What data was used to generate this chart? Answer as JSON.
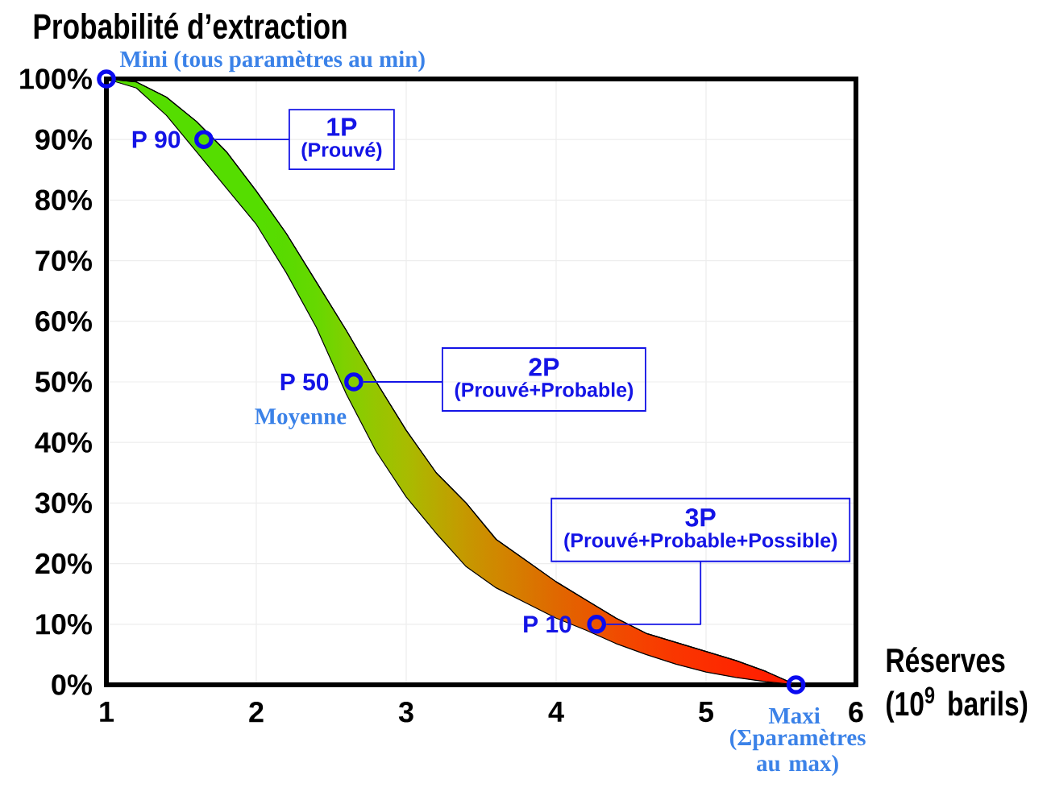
{
  "chart_data": {
    "type": "line",
    "ylabel": "Probabilité d’extraction",
    "xlabel": "Réserves (10$^{9}$ barils)",
    "xlim": [
      1,
      6
    ],
    "xticks": [
      1,
      2,
      3,
      4,
      5,
      6
    ],
    "ylim": [
      0,
      100
    ],
    "yticks": [
      {
        "value": 0,
        "label": "0%"
      },
      {
        "value": 10,
        "label": "10%"
      },
      {
        "value": 20,
        "label": "20%"
      },
      {
        "value": 30,
        "label": "30%"
      },
      {
        "value": 40,
        "label": "40%"
      },
      {
        "value": 50,
        "label": "50%"
      },
      {
        "value": 60,
        "label": "60%"
      },
      {
        "value": 70,
        "label": "70%"
      },
      {
        "value": 80,
        "label": "80%"
      },
      {
        "value": 90,
        "label": "90%"
      },
      {
        "value": 100,
        "label": "100%"
      }
    ],
    "grid": true,
    "series": [
      {
        "color": "#000000",
        "x": [
          1,
          1.2,
          1.4,
          1.6,
          1.8,
          2,
          2.2,
          2.4,
          2.6,
          2.8,
          3,
          3.2,
          3.4,
          3.6,
          3.8,
          4,
          4.2,
          4.4,
          4.6,
          4.8,
          5,
          5.2,
          5.4,
          5.6
        ],
        "values": [
          100,
          99.5,
          97,
          93,
          88,
          81.5,
          74.5,
          66.5,
          58.5,
          50,
          42,
          35,
          30,
          24,
          20.5,
          17,
          14,
          11,
          8.5,
          7,
          5.5,
          4,
          2.2,
          0
        ],
        "lower": [
          100,
          98.5,
          94,
          88,
          82,
          76,
          68,
          59,
          48,
          38.5,
          31,
          25,
          19.5,
          16,
          13.5,
          11,
          9,
          6.8,
          5,
          3.4,
          2.1,
          1.2,
          0.5,
          0
        ],
        "upper": [
          100,
          99.5,
          97,
          93,
          88,
          81.5,
          74.5,
          66.5,
          58.5,
          50,
          42,
          35,
          30,
          24,
          20.5,
          17,
          14,
          11,
          8.5,
          7,
          5.5,
          4,
          2.2,
          0
        ],
        "colors": [
          "#55dd00",
          "#55dd00",
          "#55dd00",
          "#55dd00",
          "#55dd00",
          "#55dd00",
          "#5ada00",
          "#66d800",
          "#80d000",
          "#96c600",
          "#a8bc00",
          "#b8aa00",
          "#c69800",
          "#d08800",
          "#d87800",
          "#e06800",
          "#e85a00",
          "#f04c00",
          "#f64000",
          "#fa3600",
          "#fc2e00",
          "#fe2600",
          "#ff2000",
          "#ff1a00"
        ]
      },
      {
        "type": "scatter",
        "x": [
          1,
          1.65,
          2.65,
          4.27,
          5.6
        ],
        "values": [
          100,
          90,
          50,
          10,
          0
        ],
        "color": "#0a0af0",
        "marker": "circle"
      }
    ],
    "annotations": [
      {
        "text": "Mini (tous paramètres au min)",
        "x": 1,
        "y": 100
      },
      {
        "text": "P 90",
        "x": 1.65,
        "y": 90
      },
      "1P",
      "(Prouvé)",
      {
        "text": "P 50",
        "x": 2.65,
        "y": 50
      },
      {
        "text": "Moyenne",
        "x": 2.65,
        "y": 50
      },
      "2P",
      "(Prouvé+Probable)",
      {
        "text": "P 10",
        "x": 4.27,
        "y": 10
      },
      "3P",
      {
        "text": "(Prouvé+Probable+Possible)",
        "x": 4.27,
        "y": 10
      },
      {
        "text": "Maxi",
        "x": 5.6,
        "y": 0
      },
      {
        "text": "(Σparamètres au max)",
        "x": 5.6,
        "y": 0
      }
    ]
  }
}
